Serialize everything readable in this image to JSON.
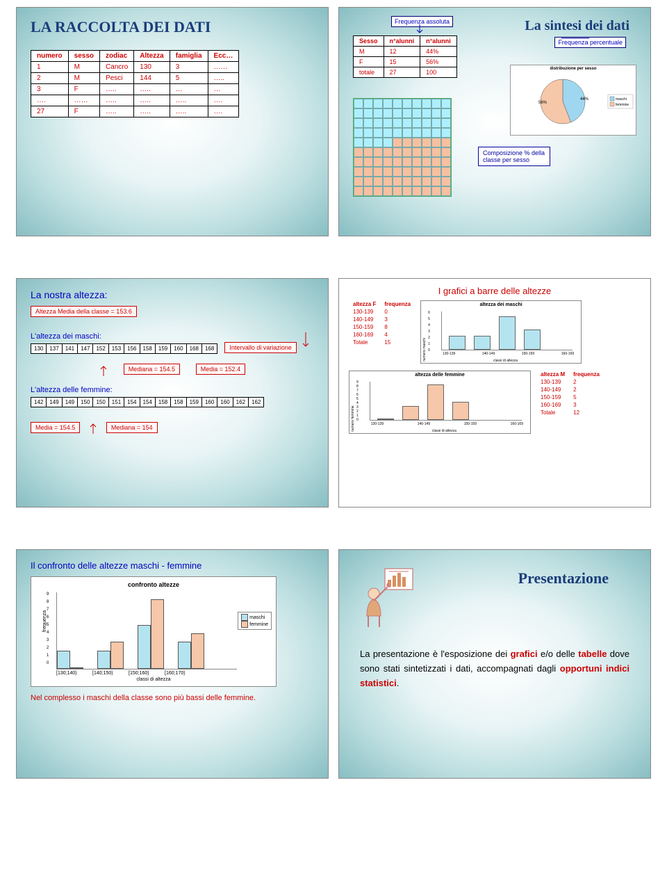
{
  "slide1": {
    "title": "LA RACCOLTA DEI DATI",
    "columns": [
      "numero",
      "sesso",
      "zodiac",
      "Altezza",
      "famiglia",
      "Ecc…"
    ],
    "rows": [
      [
        "1",
        "M",
        "Cancro",
        "130",
        "3",
        "……"
      ],
      [
        "2",
        "M",
        "Pesci",
        "144",
        "5",
        "….."
      ],
      [
        "3",
        "F",
        "…..",
        "…..",
        "…",
        "…"
      ],
      [
        "….",
        "……",
        "…..",
        "…..",
        "…..",
        "…."
      ],
      [
        "27",
        "F",
        "…..",
        "…..",
        "…..",
        "…."
      ]
    ]
  },
  "slide2": {
    "title": "La sintesi dei dati",
    "freq_assoluta_label": "Frequenza assoluta",
    "freq_percentuale_label": "Frequenza percentuale",
    "freq_table": {
      "columns": [
        "Sesso",
        "n°alunni",
        "n°alunni"
      ],
      "rows": [
        [
          "M",
          "12",
          "44%"
        ],
        [
          "F",
          "15",
          "56%"
        ],
        [
          "totale",
          "27",
          "100"
        ]
      ]
    },
    "pie": {
      "title": "distribuzione per sesso",
      "slices": [
        {
          "label": "maschi",
          "pct": 44,
          "color": "#9fd7f0",
          "text": "44%"
        },
        {
          "label": "femmine",
          "pct": 56,
          "color": "#f6c7a8",
          "text": "56%"
        }
      ],
      "background": "#ffffff"
    },
    "grid": {
      "rows": 10,
      "cols": 10,
      "m_count": 44,
      "f_count": 56,
      "m_color": "#aeefff",
      "f_color": "#f8c0a0"
    },
    "comp_label": "Composizione % della classe per sesso"
  },
  "slide3": {
    "title": "La nostra altezza:",
    "media_classe": "Altezza Media della classe = 153.6",
    "maschi_label": "L'altezza dei maschi:",
    "intervallo_label": "Intervallo di variazione",
    "maschi_values": [
      "130",
      "137",
      "141",
      "147",
      "152",
      "153",
      "156",
      "158",
      "159",
      "160",
      "168",
      "168"
    ],
    "mediana_m": "Mediana = 154.5",
    "media_m": "Media = 152.4",
    "femmine_label": "L'altezza delle femmine:",
    "femmine_values": [
      "142",
      "149",
      "149",
      "150",
      "150",
      "151",
      "154",
      "154",
      "158",
      "158",
      "159",
      "160",
      "160",
      "162",
      "162"
    ],
    "media_f": "Media = 154.5",
    "mediana_f": "Mediana = 154"
  },
  "slide4": {
    "title": "I grafici a barre delle altezze",
    "chart_m": {
      "title": "altezza dei maschi",
      "ylabel": "numero maschi",
      "xlabel": "classi di altezza",
      "categories": [
        "130-139",
        "140-149",
        "150-159",
        "160-169"
      ],
      "values": [
        2,
        2,
        5,
        3
      ],
      "ylim": [
        0,
        6
      ],
      "bar_color": "#b4e4f0",
      "border_color": "#666666"
    },
    "chart_f": {
      "title": "altezza delle femmine",
      "ylabel": "numero femmine",
      "xlabel": "classi di altezza",
      "categories": [
        "130-139",
        "140-149",
        "150-159",
        "160-169"
      ],
      "values": [
        0,
        3,
        8,
        4
      ],
      "ylim": [
        0,
        9
      ],
      "bar_color": "#f6c7a8",
      "border_color": "#666666"
    },
    "table_f": {
      "columns": [
        "altezza F",
        "frequenza"
      ],
      "rows": [
        [
          "130-139",
          "0"
        ],
        [
          "140-149",
          "3"
        ],
        [
          "150-159",
          "8"
        ],
        [
          "160-169",
          "4"
        ],
        [
          "Totale",
          "15"
        ]
      ]
    },
    "table_m": {
      "columns": [
        "altezza M",
        "frequenza"
      ],
      "rows": [
        [
          "130-139",
          "2"
        ],
        [
          "140-149",
          "2"
        ],
        [
          "150-159",
          "5"
        ],
        [
          "160-169",
          "3"
        ],
        [
          "Totale",
          "12"
        ]
      ]
    }
  },
  "slide5": {
    "title": "Il confronto delle altezze maschi - femmine",
    "chart": {
      "title": "confronto altezze",
      "xlabel": "classi di altezza",
      "ylabel": "frequenza",
      "categories": [
        "[130;140)",
        "[140;150)",
        "[150;160)",
        "[160;170)"
      ],
      "series": [
        {
          "name": "maschi",
          "color": "#b4e4f0",
          "values": [
            2,
            2,
            5,
            3
          ]
        },
        {
          "name": "femmine",
          "color": "#f6c7a8",
          "values": [
            0,
            3,
            8,
            4
          ]
        }
      ],
      "ylim": [
        0,
        9
      ],
      "yticks": [
        0,
        1,
        2,
        3,
        4,
        5,
        6,
        7,
        8,
        9
      ]
    },
    "caption": "Nel complesso i maschi della classe sono più bassi delle femmine."
  },
  "slide6": {
    "title": "Presentazione",
    "paragraph_parts": {
      "p1": "La presentazione è l'esposizione dei ",
      "g": "grafici",
      "p2": " e/o delle ",
      "t": "tabelle",
      "p3": " dove sono stati sintetizzati i dati, accompagnati dagli ",
      "i": "opportuni indici statistici",
      "p4": "."
    }
  },
  "colors": {
    "title_blue": "#1a3d7a",
    "data_red": "#c00000",
    "label_blue": "#0000c0",
    "slide_bg_outer": "#88bec2",
    "slide_bg_inner": "#ffffff"
  }
}
